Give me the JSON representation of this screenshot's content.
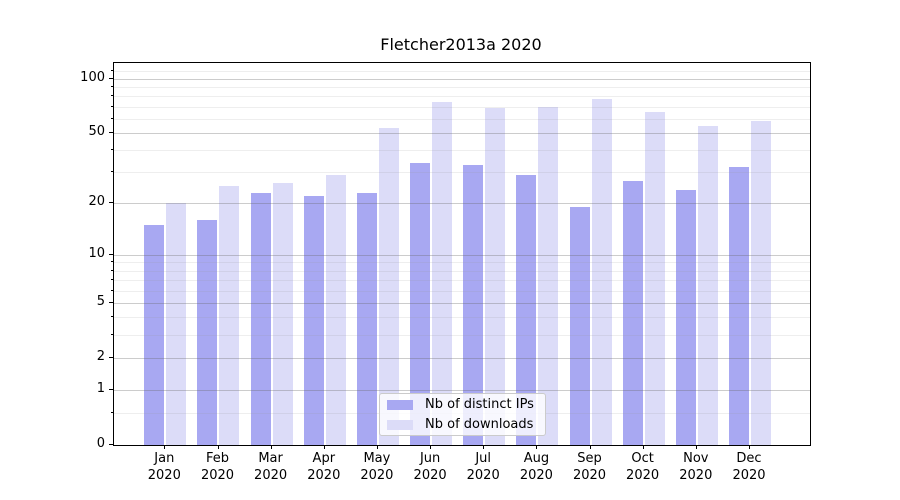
{
  "chart_data": {
    "type": "bar",
    "title": "Fletcher2013a 2020",
    "categories": [
      "Jan",
      "Feb",
      "Mar",
      "Apr",
      "May",
      "Jun",
      "Jul",
      "Aug",
      "Sep",
      "Oct",
      "Nov",
      "Dec"
    ],
    "category_year": "2020",
    "series": [
      {
        "name": "Nb of distinct IPs",
        "color": "#a8a8f2",
        "values": [
          15,
          16,
          23,
          22,
          23,
          34,
          33,
          29,
          19,
          27,
          24,
          32
        ]
      },
      {
        "name": "Nb of downloads",
        "color": "#dcdcf8",
        "values": [
          20,
          25,
          26,
          29,
          53,
          74,
          69,
          70,
          77,
          65,
          55,
          58
        ]
      }
    ],
    "yscale": "symlog-ln(1+v)",
    "ylim": [
      0,
      122
    ],
    "y_major_ticks": [
      0,
      1,
      2,
      5,
      10,
      20,
      50,
      100
    ],
    "y_minor_ticks": [
      0.5,
      3,
      4,
      6,
      7,
      8,
      9,
      30,
      40,
      60,
      70,
      80,
      90,
      110
    ],
    "grid": "major+minor, drawn above bars",
    "legend_position": "lower center"
  }
}
